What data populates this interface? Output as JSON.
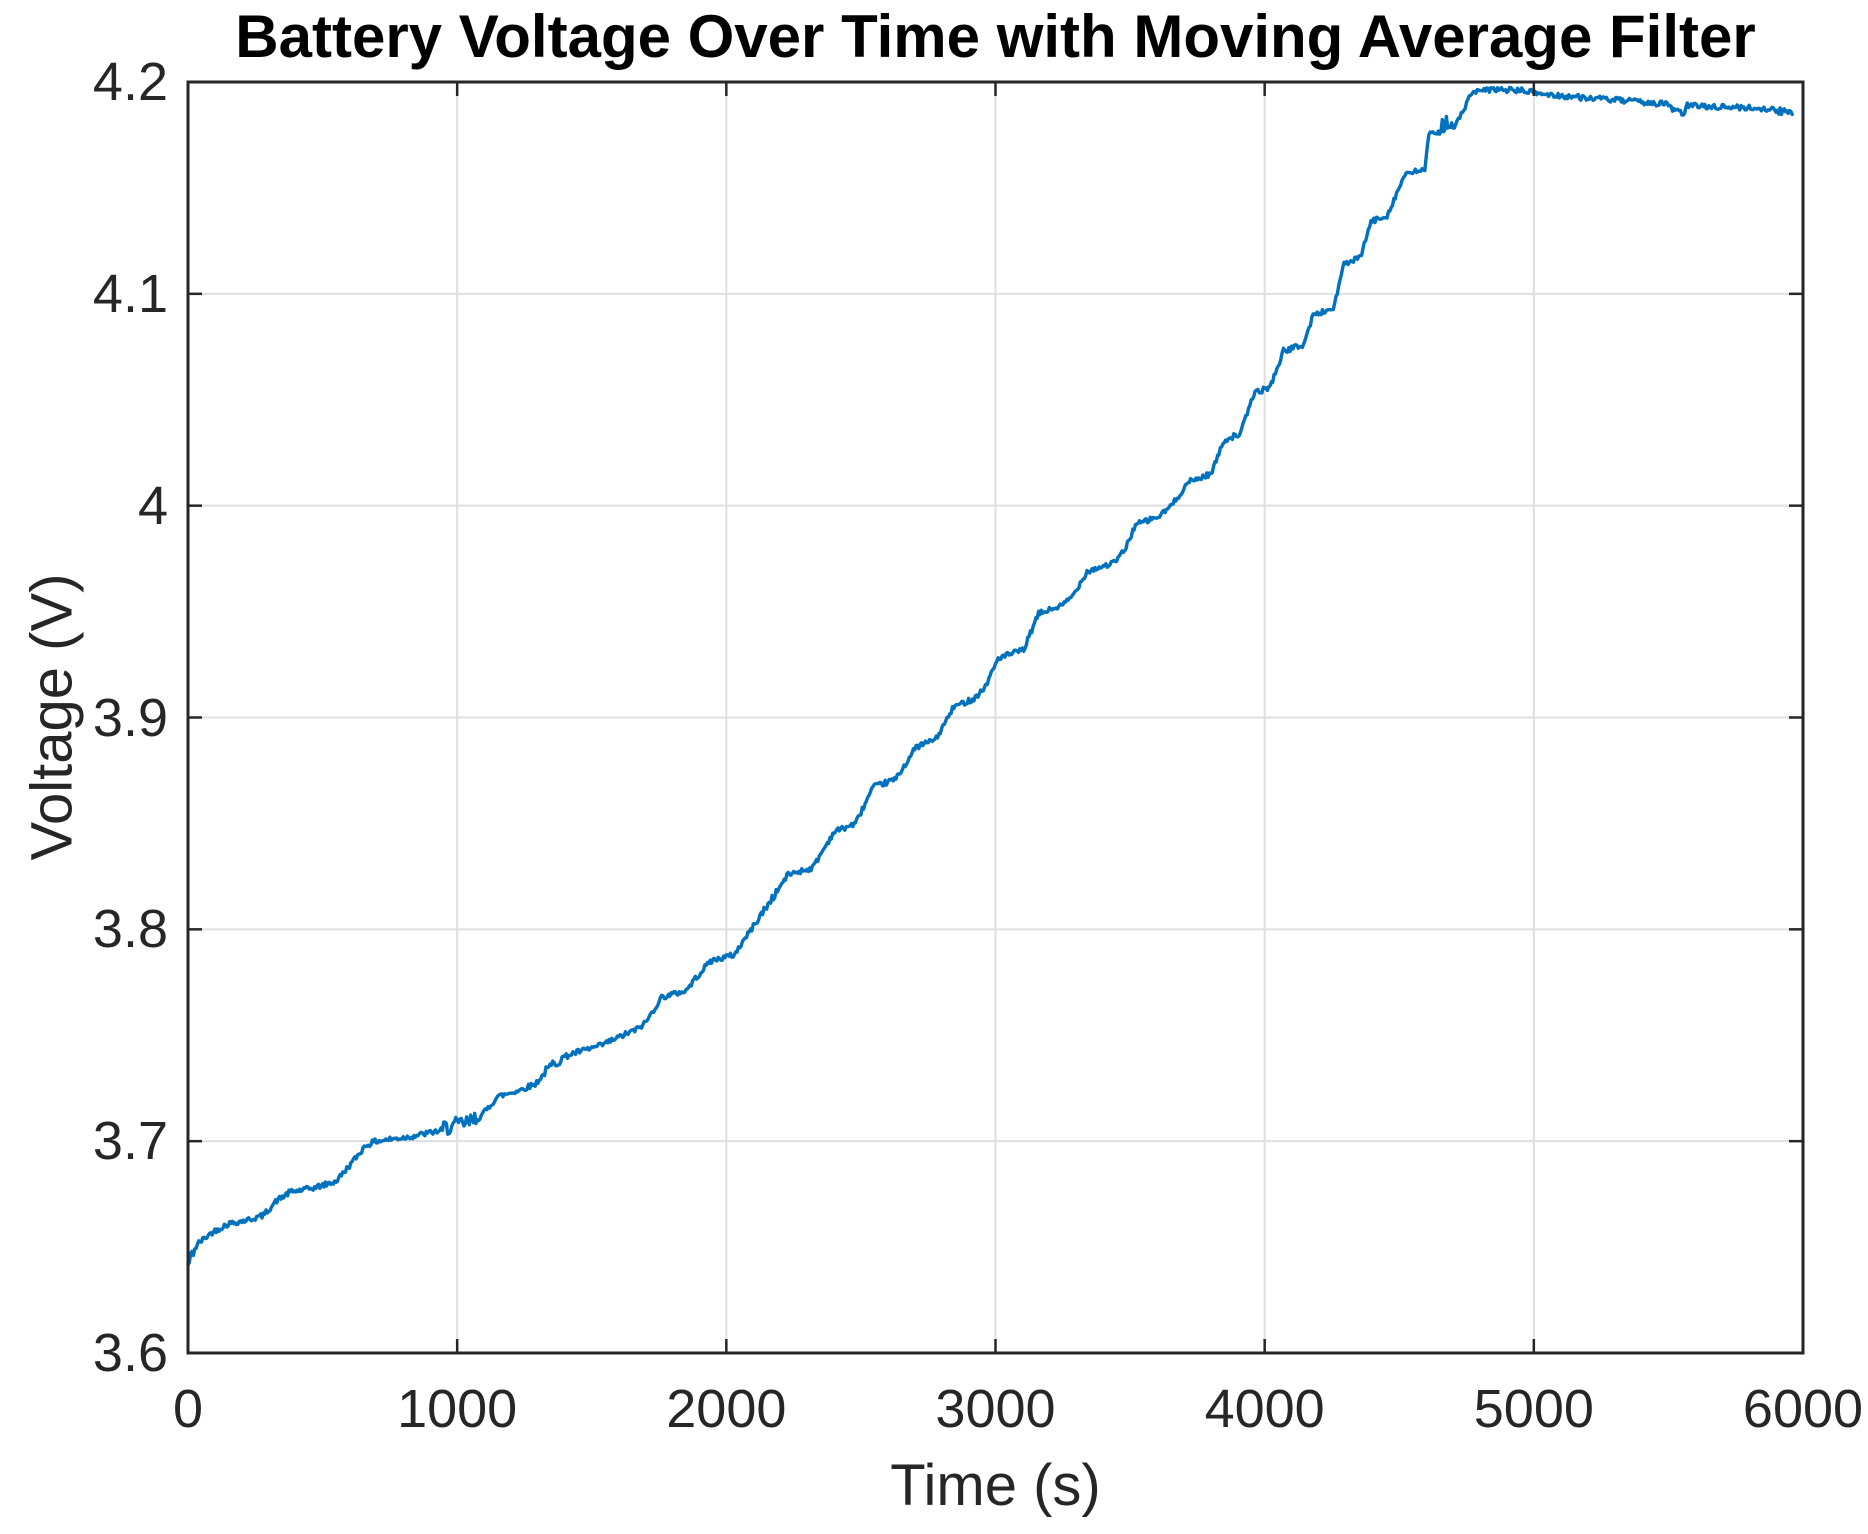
{
  "chart_data": {
    "type": "line",
    "title": "Battery Voltage Over Time with Moving Average Filter",
    "xlabel": "Time (s)",
    "ylabel": "Voltage (V)",
    "xlim": [
      0,
      6000
    ],
    "ylim": [
      3.6,
      4.2
    ],
    "grid": true,
    "legend": "none",
    "xticks": [
      {
        "value": 0,
        "label": "0"
      },
      {
        "value": 1000,
        "label": "1000"
      },
      {
        "value": 2000,
        "label": "2000"
      },
      {
        "value": 3000,
        "label": "3000"
      },
      {
        "value": 4000,
        "label": "4000"
      },
      {
        "value": 5000,
        "label": "5000"
      },
      {
        "value": 6000,
        "label": "6000"
      }
    ],
    "yticks": [
      {
        "value": 3.6,
        "label": "3.6"
      },
      {
        "value": 3.7,
        "label": "3.7"
      },
      {
        "value": 3.8,
        "label": "3.8"
      },
      {
        "value": 3.9,
        "label": "3.9"
      },
      {
        "value": 4.0,
        "label": "4"
      },
      {
        "value": 4.1,
        "label": "4.1"
      },
      {
        "value": 4.2,
        "label": "4.2"
      }
    ],
    "colors": {
      "line": "#0072BD",
      "grid": "#dfdfdf",
      "axis": "#262626",
      "title_text": "#000000",
      "background": "#ffffff"
    },
    "t_end": 5960,
    "trend_points": [
      [
        0,
        3.641
      ],
      [
        15,
        3.647
      ],
      [
        40,
        3.652
      ],
      [
        90,
        3.657
      ],
      [
        150,
        3.661
      ],
      [
        230,
        3.663
      ],
      [
        280,
        3.665
      ],
      [
        330,
        3.672
      ],
      [
        380,
        3.676
      ],
      [
        470,
        3.678
      ],
      [
        550,
        3.681
      ],
      [
        610,
        3.69
      ],
      [
        660,
        3.698
      ],
      [
        700,
        3.7
      ],
      [
        820,
        3.702
      ],
      [
        940,
        3.705
      ],
      [
        1050,
        3.708
      ],
      [
        1090,
        3.712
      ],
      [
        1150,
        3.721
      ],
      [
        1230,
        3.724
      ],
      [
        1290,
        3.727
      ],
      [
        1360,
        3.737
      ],
      [
        1420,
        3.741
      ],
      [
        1530,
        3.745
      ],
      [
        1600,
        3.749
      ],
      [
        1670,
        3.753
      ],
      [
        1700,
        3.756
      ],
      [
        1760,
        3.768
      ],
      [
        1850,
        3.771
      ],
      [
        1880,
        3.776
      ],
      [
        1940,
        3.785
      ],
      [
        2030,
        3.788
      ],
      [
        2060,
        3.794
      ],
      [
        2130,
        3.807
      ],
      [
        2230,
        3.826
      ],
      [
        2320,
        3.829
      ],
      [
        2400,
        3.846
      ],
      [
        2480,
        3.85
      ],
      [
        2545,
        3.867
      ],
      [
        2630,
        3.871
      ],
      [
        2705,
        3.886
      ],
      [
        2780,
        3.89
      ],
      [
        2845,
        3.905
      ],
      [
        2920,
        3.909
      ],
      [
        2960,
        3.914
      ],
      [
        3010,
        3.928
      ],
      [
        3105,
        3.932
      ],
      [
        3160,
        3.949
      ],
      [
        3250,
        3.953
      ],
      [
        3290,
        3.958
      ],
      [
        3340,
        3.969
      ],
      [
        3440,
        3.973
      ],
      [
        3480,
        3.979
      ],
      [
        3520,
        3.991
      ],
      [
        3610,
        3.995
      ],
      [
        3660,
        4.001
      ],
      [
        3715,
        4.011
      ],
      [
        3800,
        4.015
      ],
      [
        3850,
        4.031
      ],
      [
        3910,
        4.034
      ],
      [
        3960,
        4.053
      ],
      [
        4020,
        4.056
      ],
      [
        4070,
        4.073
      ],
      [
        4145,
        4.076
      ],
      [
        4180,
        4.09
      ],
      [
        4255,
        4.093
      ],
      [
        4295,
        4.114
      ],
      [
        4355,
        4.117
      ],
      [
        4395,
        4.134
      ],
      [
        4455,
        4.137
      ],
      [
        4520,
        4.156
      ],
      [
        4595,
        4.159
      ],
      [
        4610,
        4.175
      ],
      [
        4650,
        4.176
      ],
      [
        4700,
        4.177
      ],
      [
        4770,
        4.195
      ],
      [
        4850,
        4.1965
      ],
      [
        4950,
        4.196
      ],
      [
        5050,
        4.194
      ],
      [
        5150,
        4.193
      ],
      [
        5250,
        4.192
      ],
      [
        5350,
        4.191
      ],
      [
        5450,
        4.19
      ],
      [
        5550,
        4.189
      ],
      [
        5650,
        4.1885
      ],
      [
        5750,
        4.188
      ],
      [
        5850,
        4.1875
      ],
      [
        5960,
        4.187
      ]
    ],
    "noise": {
      "base_amplitude_v": 0.0013,
      "bursts": [
        {
          "t0": 0,
          "t1": 25,
          "amp": 0.003,
          "bias": 0
        },
        {
          "t0": 950,
          "t1": 1070,
          "amp": 0.0038,
          "bias": 0.001
        },
        {
          "t0": 1330,
          "t1": 1400,
          "amp": 0.0025,
          "bias": 0
        },
        {
          "t0": 2120,
          "t1": 2180,
          "amp": 0.002,
          "bias": 0
        },
        {
          "t0": 4652,
          "t1": 4695,
          "amp": 0.005,
          "bias": 0.005
        },
        {
          "t0": 5512,
          "t1": 5562,
          "amp": 0.0022,
          "bias": -0.0035
        },
        {
          "t0": 5885,
          "t1": 5960,
          "amp": 0.0022,
          "bias": -0.0012
        }
      ]
    }
  }
}
